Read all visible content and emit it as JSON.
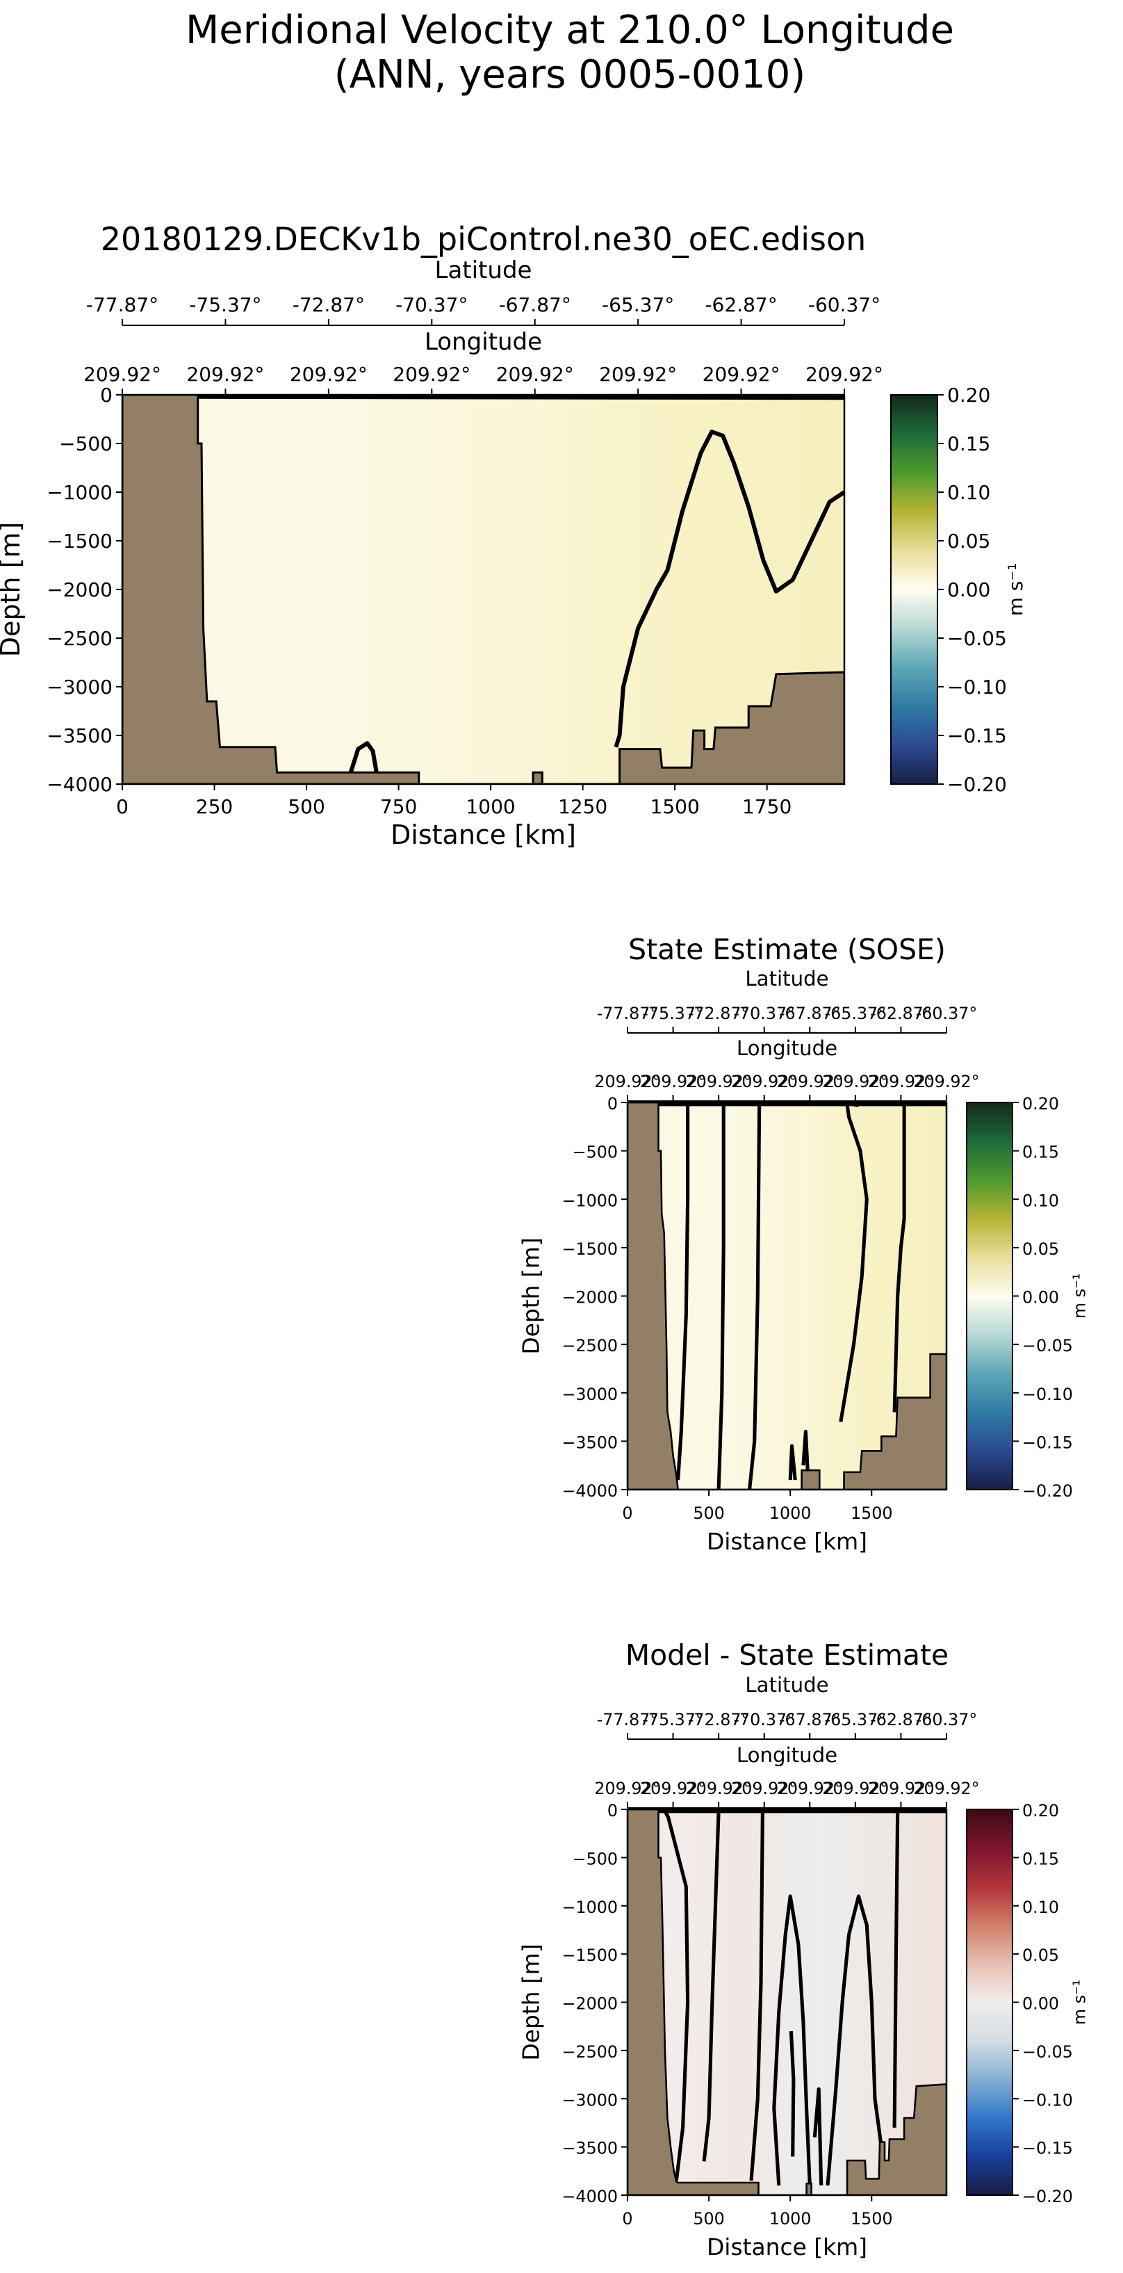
{
  "figure": {
    "title_line1": "Meridional Velocity at 210.0° Longitude",
    "title_line2": "(ANN, years 0005-0010)"
  },
  "colors": {
    "land": "#927f65",
    "contour": "#000000",
    "background": "#ffffff"
  },
  "chart_data": [
    {
      "type": "heatmap",
      "title": "20180129.DECKv1b_piControl.ne30_oEC.edison",
      "xlabel": "Distance [km]",
      "ylabel": "Depth [m]",
      "top_axis_1_label": "Latitude",
      "top_axis_1_ticks": [
        "-77.87°",
        "-75.37°",
        "-72.87°",
        "-70.37°",
        "-67.87°",
        "-65.37°",
        "-62.87°",
        "-60.37°"
      ],
      "top_axis_2_label": "Longitude",
      "top_axis_2_ticks": [
        "209.92°",
        "209.92°",
        "209.92°",
        "209.92°",
        "209.92°",
        "209.92°",
        "209.92°",
        "209.92°"
      ],
      "xlim": [
        0,
        1960
      ],
      "ylim": [
        -4000,
        0
      ],
      "x_ticks": [
        "0",
        "250",
        "500",
        "750",
        "1000",
        "1250",
        "1500",
        "1750"
      ],
      "y_ticks": [
        "0",
        "−500",
        "−1000",
        "−1500",
        "−2000",
        "−2500",
        "−3000",
        "−3500",
        "−4000"
      ],
      "colorbar": {
        "label": "m s⁻¹",
        "colormap": "delta",
        "range": [
          -0.2,
          0.2
        ],
        "ticks": [
          "0.20",
          "0.15",
          "0.10",
          "0.05",
          "0.00",
          "−0.05",
          "−0.10",
          "−0.15",
          "−0.20"
        ]
      },
      "bathymetry": [
        [
          0,
          0
        ],
        [
          205,
          0
        ],
        [
          205,
          -500
        ],
        [
          215,
          -500
        ],
        [
          220,
          -2400
        ],
        [
          230,
          -3150
        ],
        [
          255,
          -3150
        ],
        [
          265,
          -3620
        ],
        [
          415,
          -3620
        ],
        [
          420,
          -3880
        ],
        [
          805,
          -3880
        ],
        [
          805,
          -4000
        ],
        [
          1115,
          -4000
        ],
        [
          1115,
          -3880
        ],
        [
          1140,
          -3880
        ],
        [
          1140,
          -4000
        ],
        [
          1350,
          -4000
        ],
        [
          1350,
          -3640
        ],
        [
          1460,
          -3640
        ],
        [
          1465,
          -3830
        ],
        [
          1545,
          -3830
        ],
        [
          1550,
          -3450
        ],
        [
          1580,
          -3450
        ],
        [
          1580,
          -3640
        ],
        [
          1605,
          -3640
        ],
        [
          1610,
          -3420
        ],
        [
          1700,
          -3420
        ],
        [
          1700,
          -3200
        ],
        [
          1760,
          -3200
        ],
        [
          1775,
          -2870
        ],
        [
          1960,
          -2850
        ],
        [
          1960,
          -4000
        ],
        [
          0,
          -4000
        ]
      ],
      "contours": [
        [
          [
            1340,
            -3620
          ],
          [
            1350,
            -3500
          ],
          [
            1360,
            -3000
          ],
          [
            1400,
            -2400
          ],
          [
            1450,
            -2000
          ],
          [
            1480,
            -1800
          ],
          [
            1520,
            -1200
          ],
          [
            1570,
            -600
          ],
          [
            1600,
            -380
          ],
          [
            1630,
            -420
          ],
          [
            1660,
            -700
          ],
          [
            1700,
            -1150
          ],
          [
            1740,
            -1700
          ],
          [
            1775,
            -2020
          ],
          [
            1820,
            -1900
          ],
          [
            1870,
            -1500
          ],
          [
            1920,
            -1100
          ],
          [
            1960,
            -1000
          ]
        ],
        [
          [
            620,
            -3880
          ],
          [
            640,
            -3640
          ],
          [
            665,
            -3580
          ],
          [
            680,
            -3660
          ],
          [
            690,
            -3880
          ]
        ],
        [
          [
            205,
            -20
          ],
          [
            1960,
            -30
          ]
        ]
      ]
    },
    {
      "type": "heatmap",
      "title": "State Estimate (SOSE)",
      "xlabel": "Distance [km]",
      "ylabel": "Depth [m]",
      "top_axis_1_label": "Latitude",
      "top_axis_1_ticks": [
        "-77.87°",
        "-75.37°",
        "-72.87°",
        "-70.37°",
        "-67.87°",
        "-65.37°",
        "-62.87°",
        "-60.37°"
      ],
      "top_axis_2_label": "Longitude",
      "top_axis_2_ticks": [
        "209.92°",
        "209.92°",
        "209.92°",
        "209.92°",
        "209.92°",
        "209.92°",
        "209.92°",
        "209.92°"
      ],
      "xlim": [
        0,
        1960
      ],
      "ylim": [
        -4000,
        0
      ],
      "x_ticks": [
        "0",
        "500",
        "1000",
        "1500"
      ],
      "y_ticks": [
        "0",
        "−500",
        "−1000",
        "−1500",
        "−2000",
        "−2500",
        "−3000",
        "−3500",
        "−4000"
      ],
      "colorbar": {
        "label": "m s⁻¹",
        "colormap": "delta",
        "range": [
          -0.2,
          0.2
        ],
        "ticks": [
          "0.20",
          "0.15",
          "0.10",
          "0.05",
          "0.00",
          "−0.05",
          "−0.10",
          "−0.15",
          "−0.20"
        ]
      },
      "bathymetry": [
        [
          0,
          0
        ],
        [
          190,
          0
        ],
        [
          190,
          -500
        ],
        [
          205,
          -500
        ],
        [
          210,
          -1150
        ],
        [
          225,
          -1350
        ],
        [
          240,
          -2550
        ],
        [
          245,
          -3200
        ],
        [
          265,
          -3400
        ],
        [
          280,
          -3650
        ],
        [
          300,
          -3850
        ],
        [
          310,
          -4000
        ],
        [
          1070,
          -4000
        ],
        [
          1070,
          -3800
        ],
        [
          1180,
          -3800
        ],
        [
          1180,
          -4000
        ],
        [
          1330,
          -4000
        ],
        [
          1330,
          -3820
        ],
        [
          1430,
          -3820
        ],
        [
          1440,
          -3600
        ],
        [
          1560,
          -3600
        ],
        [
          1560,
          -3450
        ],
        [
          1650,
          -3450
        ],
        [
          1660,
          -3050
        ],
        [
          1860,
          -3050
        ],
        [
          1860,
          -2600
        ],
        [
          1960,
          -2600
        ],
        [
          1960,
          -4000
        ],
        [
          0,
          -4000
        ]
      ],
      "contours": [
        [
          [
            310,
            -3900
          ],
          [
            330,
            -3400
          ],
          [
            360,
            -2200
          ],
          [
            370,
            -1000
          ],
          [
            370,
            -20
          ]
        ],
        [
          [
            560,
            -4000
          ],
          [
            580,
            -3000
          ],
          [
            590,
            -1500
          ],
          [
            590,
            -20
          ]
        ],
        [
          [
            750,
            -4000
          ],
          [
            780,
            -3500
          ],
          [
            800,
            -2000
          ],
          [
            810,
            -20
          ]
        ],
        [
          [
            1310,
            -3300
          ],
          [
            1390,
            -2500
          ],
          [
            1440,
            -1800
          ],
          [
            1470,
            -1000
          ],
          [
            1430,
            -500
          ],
          [
            1360,
            -150
          ],
          [
            1350,
            -20
          ]
        ],
        [
          [
            1640,
            -3200
          ],
          [
            1660,
            -2000
          ],
          [
            1680,
            -1500
          ],
          [
            1700,
            -1200
          ],
          [
            1700,
            -20
          ]
        ],
        [
          [
            1080,
            -3750
          ],
          [
            1095,
            -3400
          ],
          [
            1110,
            -3900
          ]
        ],
        [
          [
            1000,
            -3900
          ],
          [
            1010,
            -3550
          ],
          [
            1030,
            -3900
          ]
        ],
        [
          [
            1310,
            -20
          ],
          [
            1370,
            -15
          ],
          [
            1420,
            -30
          ]
        ],
        [
          [
            20,
            -20
          ],
          [
            1960,
            -20
          ]
        ]
      ]
    },
    {
      "type": "heatmap",
      "title": "Model - State Estimate",
      "xlabel": "Distance [km]",
      "ylabel": "Depth [m]",
      "top_axis_1_label": "Latitude",
      "top_axis_1_ticks": [
        "-77.87°",
        "-75.37°",
        "-72.87°",
        "-70.37°",
        "-67.87°",
        "-65.37°",
        "-62.87°",
        "-60.37°"
      ],
      "top_axis_2_label": "Longitude",
      "top_axis_2_ticks": [
        "209.92°",
        "209.92°",
        "209.92°",
        "209.92°",
        "209.92°",
        "209.92°",
        "209.92°",
        "209.92°"
      ],
      "xlim": [
        0,
        1960
      ],
      "ylim": [
        -4000,
        0
      ],
      "x_ticks": [
        "0",
        "500",
        "1000",
        "1500"
      ],
      "y_ticks": [
        "0",
        "−500",
        "−1000",
        "−1500",
        "−2000",
        "−2500",
        "−3000",
        "−3500",
        "−4000"
      ],
      "colorbar": {
        "label": "m s⁻¹",
        "colormap": "balance",
        "range": [
          -0.2,
          0.2
        ],
        "ticks": [
          "0.20",
          "0.15",
          "0.10",
          "0.05",
          "0.00",
          "−0.05",
          "−0.10",
          "−0.15",
          "−0.20"
        ]
      },
      "bathymetry": [
        [
          0,
          0
        ],
        [
          190,
          0
        ],
        [
          190,
          -500
        ],
        [
          205,
          -500
        ],
        [
          215,
          -1200
        ],
        [
          230,
          -2500
        ],
        [
          245,
          -3200
        ],
        [
          265,
          -3500
        ],
        [
          285,
          -3750
        ],
        [
          300,
          -3860
        ],
        [
          310,
          -3870
        ],
        [
          805,
          -3870
        ],
        [
          805,
          -4000
        ],
        [
          1100,
          -4000
        ],
        [
          1100,
          -3880
        ],
        [
          1130,
          -3880
        ],
        [
          1130,
          -4000
        ],
        [
          1350,
          -4000
        ],
        [
          1350,
          -3640
        ],
        [
          1460,
          -3640
        ],
        [
          1465,
          -3830
        ],
        [
          1545,
          -3830
        ],
        [
          1550,
          -3450
        ],
        [
          1580,
          -3450
        ],
        [
          1580,
          -3640
        ],
        [
          1605,
          -3640
        ],
        [
          1610,
          -3420
        ],
        [
          1700,
          -3420
        ],
        [
          1700,
          -3200
        ],
        [
          1760,
          -3200
        ],
        [
          1775,
          -2870
        ],
        [
          1960,
          -2850
        ],
        [
          1960,
          -4000
        ],
        [
          0,
          -4000
        ]
      ],
      "contours": [
        [
          [
            300,
            -3850
          ],
          [
            340,
            -3300
          ],
          [
            370,
            -2000
          ],
          [
            360,
            -800
          ],
          [
            250,
            -80
          ],
          [
            230,
            -20
          ]
        ],
        [
          [
            470,
            -3650
          ],
          [
            500,
            -3200
          ],
          [
            520,
            -2000
          ],
          [
            540,
            -1000
          ],
          [
            560,
            -20
          ]
        ],
        [
          [
            760,
            -3850
          ],
          [
            800,
            -3000
          ],
          [
            820,
            -1800
          ],
          [
            830,
            -20
          ]
        ],
        [
          [
            930,
            -3900
          ],
          [
            900,
            -3100
          ],
          [
            930,
            -2100
          ],
          [
            970,
            -1300
          ],
          [
            1000,
            -900
          ],
          [
            1050,
            -1400
          ],
          [
            1080,
            -2200
          ],
          [
            1100,
            -3100
          ],
          [
            1120,
            -3900
          ]
        ],
        [
          [
            1230,
            -3900
          ],
          [
            1280,
            -2900
          ],
          [
            1320,
            -2000
          ],
          [
            1360,
            -1300
          ],
          [
            1420,
            -900
          ],
          [
            1470,
            -1200
          ],
          [
            1500,
            -2000
          ],
          [
            1520,
            -3000
          ],
          [
            1560,
            -3500
          ]
        ],
        [
          [
            1640,
            -3300
          ],
          [
            1650,
            -1500
          ],
          [
            1660,
            -20
          ]
        ],
        [
          [
            1150,
            -3400
          ],
          [
            1175,
            -2900
          ],
          [
            1190,
            -3900
          ]
        ],
        [
          [
            1005,
            -2300
          ],
          [
            1020,
            -2800
          ],
          [
            1015,
            -3600
          ]
        ],
        [
          [
            60,
            -20
          ],
          [
            1960,
            -20
          ]
        ]
      ]
    }
  ]
}
